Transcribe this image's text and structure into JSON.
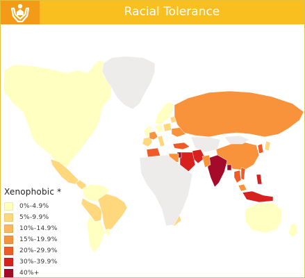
{
  "header": {
    "title": "Racial Tolerance",
    "logo_icon": "hands-holding-person-icon",
    "bar_color": "#f9bf1e",
    "logo_color": "#f39a17"
  },
  "map": {
    "no_data_color": "#eeeceb",
    "ocean_color": "#ffffff",
    "regions": [
      {
        "name": "North America",
        "bin": 0
      },
      {
        "name": "Greenland",
        "bin": -1
      },
      {
        "name": "Mexico",
        "bin": 1
      },
      {
        "name": "Central America",
        "bin": 1
      },
      {
        "name": "Colombia / Venezuela",
        "bin": 0
      },
      {
        "name": "Peru / Bolivia",
        "bin": 1
      },
      {
        "name": "Brazil",
        "bin": 1
      },
      {
        "name": "Argentina / Chile",
        "bin": 0
      },
      {
        "name": "Uruguay",
        "bin": 0
      },
      {
        "name": "Western Europe",
        "bin": 0
      },
      {
        "name": "Spain",
        "bin": 1
      },
      {
        "name": "France",
        "bin": 3
      },
      {
        "name": "Italy",
        "bin": 1
      },
      {
        "name": "Germany",
        "bin": 0
      },
      {
        "name": "Poland",
        "bin": 1
      },
      {
        "name": "Scandinavia",
        "bin": 0
      },
      {
        "name": "Baltics",
        "bin": 1
      },
      {
        "name": "Ukraine",
        "bin": 3
      },
      {
        "name": "Turkey",
        "bin": 4
      },
      {
        "name": "Russia",
        "bin": 3
      },
      {
        "name": "Kazakhstan",
        "bin": -1
      },
      {
        "name": "China",
        "bin": 3
      },
      {
        "name": "Mongolia",
        "bin": -1
      },
      {
        "name": "Korea",
        "bin": 4
      },
      {
        "name": "Japan",
        "bin": 1
      },
      {
        "name": "Iran",
        "bin": 5
      },
      {
        "name": "Iraq / Saudi Arabia",
        "bin": 5
      },
      {
        "name": "Jordan",
        "bin": 6
      },
      {
        "name": "India",
        "bin": 6
      },
      {
        "name": "Pakistan",
        "bin": 3
      },
      {
        "name": "Bangladesh",
        "bin": 6
      },
      {
        "name": "Thailand",
        "bin": 4
      },
      {
        "name": "Vietnam",
        "bin": 4
      },
      {
        "name": "Malaysia",
        "bin": 3
      },
      {
        "name": "Indonesia",
        "bin": 5
      },
      {
        "name": "Philippines",
        "bin": 5
      },
      {
        "name": "Algeria",
        "bin": 4
      },
      {
        "name": "Egypt",
        "bin": 3
      },
      {
        "name": "Mali",
        "bin": 3
      },
      {
        "name": "Nigeria",
        "bin": 5
      },
      {
        "name": "Ethiopia",
        "bin": 3
      },
      {
        "name": "Zambia",
        "bin": 5
      },
      {
        "name": "Zimbabwe",
        "bin": 2
      },
      {
        "name": "South Africa",
        "bin": 1
      },
      {
        "name": "Australia",
        "bin": 0
      },
      {
        "name": "New Zealand",
        "bin": 0
      },
      {
        "name": "Rest of Africa",
        "bin": -1
      }
    ]
  },
  "legend": {
    "title": "Xenophobic *",
    "items": [
      {
        "label": "0%-4.9%",
        "color": "#ffffc2"
      },
      {
        "label": "5%-9.9%",
        "color": "#ffd77d"
      },
      {
        "label": "10%-14.9%",
        "color": "#fcb95b"
      },
      {
        "label": "15%-19.9%",
        "color": "#f9933b"
      },
      {
        "label": "20%-29.9%",
        "color": "#f05a27"
      },
      {
        "label": "30%-39.9%",
        "color": "#d6211f"
      },
      {
        "label": "40%+",
        "color": "#a50a2b"
      }
    ]
  }
}
